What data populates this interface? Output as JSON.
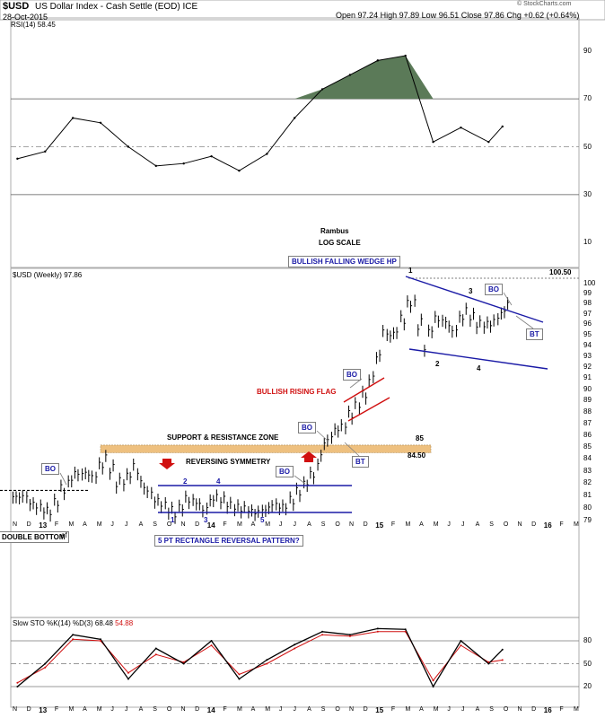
{
  "header": {
    "symbol": "$USD",
    "name": "US Dollar Index - Cash Settle (EOD)",
    "exchange": "ICE",
    "date": "28-Oct-2015",
    "open_label": "Open",
    "open": "97.24",
    "high_label": "High",
    "high": "97.89",
    "low_label": "Low",
    "low": "96.51",
    "close_label": "Close",
    "close": "97.86",
    "chg_label": "Chg",
    "chg": "+0.62 (+0.64%)",
    "watermark": "© StockCharts.com"
  },
  "rsi": {
    "label": "RSI(14)",
    "value": "58.45",
    "ticks": [
      "90",
      "70",
      "50",
      "30",
      "10"
    ],
    "levels": [
      90,
      70,
      50,
      30,
      10
    ],
    "overbought": 70,
    "oversold": 30,
    "mid": 50
  },
  "main": {
    "legend": "$USD (Weekly)",
    "legend_value": "97.86",
    "last_price": "100.50",
    "author": "Rambus",
    "scale_note": "LOG SCALE",
    "ticks": [
      "100",
      "99",
      "98",
      "97",
      "96",
      "95",
      "94",
      "93",
      "92",
      "91",
      "90",
      "89",
      "88",
      "87",
      "86",
      "85",
      "84",
      "83",
      "82",
      "81",
      "80",
      "79"
    ],
    "annotations": {
      "wedge": "BULLISH FALLING WEDGE HP",
      "flag": "BULLISH RISING FLAG",
      "sr_zone": "SUPPORT & RESISTANCE ZONE",
      "reversing": "REVERSING SYMMETRY",
      "rectangle": "5 PT RECTANGLE REVERSAL PATTERN?",
      "double_bottom": "DOUBLE BOTTOM",
      "level_85": "85",
      "level_8450": "84.50",
      "bo": "BO",
      "bt": "BT",
      "n1": "1",
      "n2": "2",
      "n3": "3",
      "n4": "4",
      "n5": "5",
      "partial_label": "ef"
    }
  },
  "sto": {
    "label": "Slow STO %K(14) %D(3)",
    "k_value": "68.48",
    "d_value": "54.88",
    "ticks": [
      "80",
      "50",
      "20"
    ],
    "levels": [
      80,
      50,
      20
    ]
  },
  "x_axis": {
    "labels": [
      "N",
      "D",
      "13",
      "F",
      "M",
      "A",
      "M",
      "J",
      "J",
      "A",
      "S",
      "O",
      "N",
      "D",
      "14",
      "F",
      "M",
      "A",
      "M",
      "J",
      "J",
      "A",
      "S",
      "O",
      "N",
      "D",
      "15",
      "F",
      "M",
      "A",
      "M",
      "J",
      "J",
      "A",
      "S",
      "O",
      "N",
      "D",
      "16",
      "F",
      "M"
    ]
  },
  "colors": {
    "rsi_fill": "#5b7a58",
    "blue_line": "#1a1aa6",
    "red_line": "#d01010",
    "sr_zone": "#e8a64a",
    "sto_k": "#000000",
    "sto_d": "#d01010"
  },
  "chart_data": {
    "type": "ohlc",
    "title": "$USD US Dollar Index - Cash Settle (EOD) ICE",
    "period": "weekly",
    "series": [
      {
        "name": "$USD (Weekly)",
        "close_points": [
          {
            "x": "2012-11",
            "y": 80.9
          },
          {
            "x": "2012-12",
            "y": 80.1
          },
          {
            "x": "2013-01",
            "y": 79.7
          },
          {
            "x": "2013-02",
            "y": 81.8
          },
          {
            "x": "2013-03",
            "y": 83.0
          },
          {
            "x": "2013-04",
            "y": 82.6
          },
          {
            "x": "2013-05",
            "y": 84.0
          },
          {
            "x": "2013-06",
            "y": 81.8
          },
          {
            "x": "2013-07",
            "y": 83.2
          },
          {
            "x": "2013-08",
            "y": 81.2
          },
          {
            "x": "2013-09",
            "y": 80.3
          },
          {
            "x": "2013-10",
            "y": 79.6
          },
          {
            "x": "2013-11",
            "y": 80.9
          },
          {
            "x": "2013-12",
            "y": 80.0
          },
          {
            "x": "2014-01",
            "y": 81.0
          },
          {
            "x": "2014-02",
            "y": 80.2
          },
          {
            "x": "2014-03",
            "y": 79.9
          },
          {
            "x": "2014-04",
            "y": 79.6
          },
          {
            "x": "2014-05",
            "y": 80.2
          },
          {
            "x": "2014-06",
            "y": 80.1
          },
          {
            "x": "2014-07",
            "y": 81.5
          },
          {
            "x": "2014-08",
            "y": 82.9
          },
          {
            "x": "2014-09",
            "y": 85.9
          },
          {
            "x": "2014-10",
            "y": 86.8
          },
          {
            "x": "2014-11",
            "y": 88.4
          },
          {
            "x": "2014-12",
            "y": 90.3
          },
          {
            "x": "2015-01",
            "y": 94.8
          },
          {
            "x": "2015-02",
            "y": 95.3
          },
          {
            "x": "2015-03",
            "y": 98.4
          },
          {
            "x": "2015-04",
            "y": 94.6
          },
          {
            "x": "2015-05",
            "y": 96.9
          },
          {
            "x": "2015-06",
            "y": 95.5
          },
          {
            "x": "2015-07",
            "y": 97.3
          },
          {
            "x": "2015-08",
            "y": 95.9
          },
          {
            "x": "2015-09",
            "y": 96.2
          },
          {
            "x": "2015-10",
            "y": 97.86
          }
        ]
      },
      {
        "name": "RSI(14)",
        "points": [
          {
            "x": "2012-11",
            "y": 45
          },
          {
            "x": "2013-01",
            "y": 48
          },
          {
            "x": "2013-03",
            "y": 62
          },
          {
            "x": "2013-05",
            "y": 60
          },
          {
            "x": "2013-07",
            "y": 50
          },
          {
            "x": "2013-09",
            "y": 42
          },
          {
            "x": "2013-11",
            "y": 43
          },
          {
            "x": "2014-01",
            "y": 46
          },
          {
            "x": "2014-03",
            "y": 40
          },
          {
            "x": "2014-05",
            "y": 47
          },
          {
            "x": "2014-07",
            "y": 62
          },
          {
            "x": "2014-09",
            "y": 74
          },
          {
            "x": "2014-11",
            "y": 80
          },
          {
            "x": "2015-01",
            "y": 86
          },
          {
            "x": "2015-03",
            "y": 88
          },
          {
            "x": "2015-05",
            "y": 52
          },
          {
            "x": "2015-07",
            "y": 58
          },
          {
            "x": "2015-09",
            "y": 52
          },
          {
            "x": "2015-10",
            "y": 58.45
          }
        ]
      },
      {
        "name": "%K(14)",
        "points": [
          {
            "x": "2012-11",
            "y": 20
          },
          {
            "x": "2013-01",
            "y": 50
          },
          {
            "x": "2013-03",
            "y": 88
          },
          {
            "x": "2013-05",
            "y": 82
          },
          {
            "x": "2013-07",
            "y": 30
          },
          {
            "x": "2013-09",
            "y": 70
          },
          {
            "x": "2013-11",
            "y": 50
          },
          {
            "x": "2014-01",
            "y": 80
          },
          {
            "x": "2014-03",
            "y": 30
          },
          {
            "x": "2014-05",
            "y": 55
          },
          {
            "x": "2014-07",
            "y": 75
          },
          {
            "x": "2014-09",
            "y": 92
          },
          {
            "x": "2014-11",
            "y": 88
          },
          {
            "x": "2015-01",
            "y": 96
          },
          {
            "x": "2015-03",
            "y": 95
          },
          {
            "x": "2015-05",
            "y": 20
          },
          {
            "x": "2015-07",
            "y": 80
          },
          {
            "x": "2015-09",
            "y": 50
          },
          {
            "x": "2015-10",
            "y": 68.48
          }
        ]
      },
      {
        "name": "%D(3)",
        "points": [
          {
            "x": "2012-11",
            "y": 25
          },
          {
            "x": "2013-01",
            "y": 45
          },
          {
            "x": "2013-03",
            "y": 82
          },
          {
            "x": "2013-05",
            "y": 80
          },
          {
            "x": "2013-07",
            "y": 38
          },
          {
            "x": "2013-09",
            "y": 62
          },
          {
            "x": "2013-11",
            "y": 52
          },
          {
            "x": "2014-01",
            "y": 74
          },
          {
            "x": "2014-03",
            "y": 36
          },
          {
            "x": "2014-05",
            "y": 50
          },
          {
            "x": "2014-07",
            "y": 70
          },
          {
            "x": "2014-09",
            "y": 88
          },
          {
            "x": "2014-11",
            "y": 86
          },
          {
            "x": "2015-01",
            "y": 92
          },
          {
            "x": "2015-03",
            "y": 92
          },
          {
            "x": "2015-05",
            "y": 28
          },
          {
            "x": "2015-07",
            "y": 74
          },
          {
            "x": "2015-09",
            "y": 52
          },
          {
            "x": "2015-10",
            "y": 54.88
          }
        ]
      }
    ],
    "ylim_price": [
      79,
      100.5
    ],
    "ylim_rsi": [
      0,
      100
    ],
    "ylim_sto": [
      0,
      100
    ],
    "y_scale": "log",
    "grid": false,
    "legend": "top-left"
  }
}
